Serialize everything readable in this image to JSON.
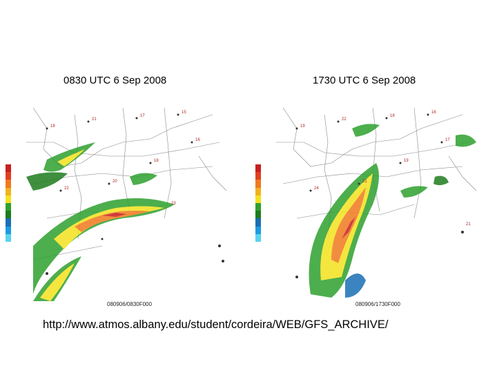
{
  "panels": [
    {
      "caption": "0830 UTC 6 Sep 2008",
      "footer": "080906/0830F000"
    },
    {
      "caption": "1730 UTC 6 Sep 2008",
      "footer": "080906/1730F000"
    }
  ],
  "colorbar_colors": [
    "#c81e1e",
    "#e04020",
    "#f07a1e",
    "#f2b21e",
    "#f4e21e",
    "#2ea02e",
    "#1e7c1e",
    "#1a6fb4",
    "#1e9be0",
    "#5ad2f0"
  ],
  "url": "http://www.atmos.albany.edu/student/cordeira/WEB/GFS_ARCHIVE/"
}
